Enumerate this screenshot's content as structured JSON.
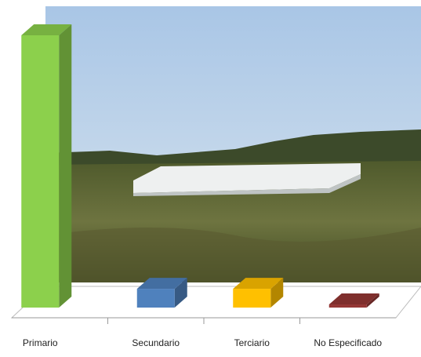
{
  "chart_data": {
    "type": "bar3d",
    "categories": [
      "Primario",
      "Secundario",
      "Terciario",
      "No Especificado"
    ],
    "series": [
      {
        "values": [
          87,
          6,
          6,
          1
        ],
        "colors": [
          "#8cd04c",
          "#4f81bd",
          "#ffc000",
          "#953735"
        ]
      }
    ]
  }
}
